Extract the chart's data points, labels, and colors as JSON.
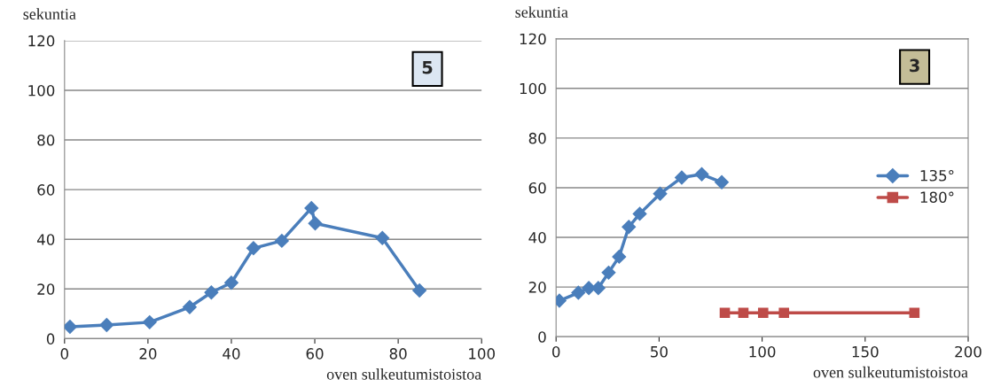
{
  "chart_data": [
    {
      "type": "line",
      "ylabel": "sekuntia",
      "xlabel": "oven sulkeutumistoistoa",
      "annotations": [
        "5"
      ],
      "xlim": [
        0,
        100
      ],
      "xticks": [
        0,
        20,
        40,
        60,
        80,
        100
      ],
      "ylim": [
        0,
        120
      ],
      "yticks": [
        0,
        20,
        40,
        60,
        80,
        100,
        120
      ],
      "grid": "y",
      "marker": "diamond",
      "series": [
        {
          "color": "#4a7ebb",
          "x": [
            1.3,
            10.1,
            20.4,
            30,
            35.2,
            40,
            45.3,
            52.1,
            59.2,
            60.1,
            76.2,
            85.1
          ],
          "values": [
            4.8,
            5.5,
            6.6,
            12.7,
            18.6,
            22.5,
            36.4,
            39.4,
            52.6,
            46.4,
            40.5,
            19.4
          ]
        }
      ]
    },
    {
      "type": "line",
      "ylabel": "sekuntia",
      "xlabel": "oven sulkeutumistoistoa",
      "annotations": [
        "3"
      ],
      "xlim": [
        0,
        200
      ],
      "xticks": [
        0,
        50,
        100,
        150,
        200
      ],
      "ylim": [
        0,
        120
      ],
      "yticks": [
        0,
        20,
        40,
        60,
        80,
        100,
        120
      ],
      "grid": "y",
      "legend": "right",
      "series": [
        {
          "name": "135°",
          "color": "#4a7ebb",
          "marker": "diamond",
          "x": [
            1.6,
            10.8,
            15.9,
            20.5,
            25.5,
            30.6,
            35.3,
            40.6,
            50.5,
            61,
            70.7,
            80.4
          ],
          "values": [
            14.5,
            17.7,
            19.6,
            19.6,
            25.8,
            32.2,
            44.2,
            49.5,
            57.6,
            64.1,
            65.4,
            62.2
          ]
        },
        {
          "name": "180°",
          "color": "#be4b48",
          "marker": "square",
          "x": [
            81.9,
            90.9,
            100.5,
            110.6,
            173.9
          ],
          "values": [
            9.6,
            9.6,
            9.6,
            9.6,
            9.6
          ]
        }
      ]
    }
  ]
}
